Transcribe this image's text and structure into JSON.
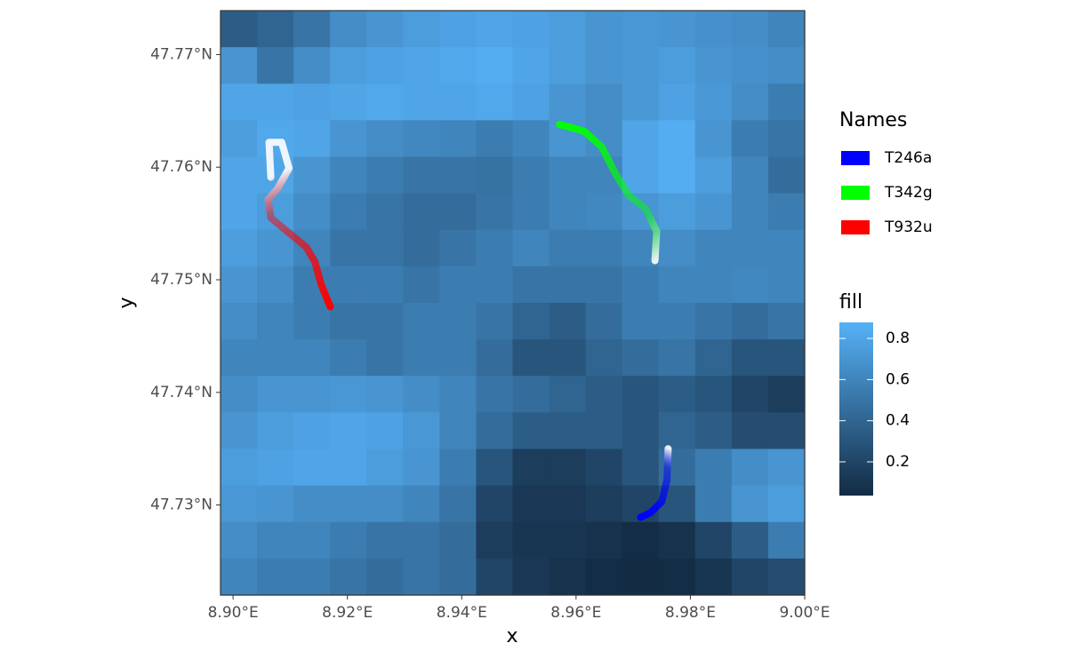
{
  "chart_data": {
    "type": "heatmap",
    "xlabel": "x",
    "ylabel": "y",
    "xlim": [
      8.8978,
      9.0
    ],
    "ylim": [
      47.722,
      47.7739
    ],
    "xticks": [
      {
        "value": 8.9,
        "label": "8.90°E"
      },
      {
        "value": 8.92,
        "label": "8.92°E"
      },
      {
        "value": 8.94,
        "label": "8.94°E"
      },
      {
        "value": 8.96,
        "label": "8.96°E"
      },
      {
        "value": 8.98,
        "label": "8.98°E"
      },
      {
        "value": 9.0,
        "label": "9.00°E"
      }
    ],
    "yticks": [
      {
        "value": 47.73,
        "label": "47.73°N"
      },
      {
        "value": 47.74,
        "label": "47.74°N"
      },
      {
        "value": 47.75,
        "label": "47.75°N"
      },
      {
        "value": 47.76,
        "label": "47.76°N"
      },
      {
        "value": 47.77,
        "label": "47.77°N"
      }
    ],
    "z": [
      [
        0.35,
        0.4,
        0.5,
        0.65,
        0.7,
        0.75,
        0.78,
        0.8,
        0.78,
        0.75,
        0.7,
        0.72,
        0.7,
        0.68,
        0.65,
        0.6
      ],
      [
        0.7,
        0.5,
        0.65,
        0.75,
        0.78,
        0.8,
        0.82,
        0.85,
        0.8,
        0.75,
        0.7,
        0.72,
        0.75,
        0.7,
        0.68,
        0.65
      ],
      [
        0.8,
        0.8,
        0.78,
        0.8,
        0.82,
        0.8,
        0.8,
        0.82,
        0.78,
        0.7,
        0.65,
        0.72,
        0.78,
        0.72,
        0.65,
        0.55
      ],
      [
        0.75,
        0.82,
        0.8,
        0.7,
        0.65,
        0.62,
        0.6,
        0.55,
        0.6,
        0.7,
        0.65,
        0.8,
        0.85,
        0.7,
        0.55,
        0.5
      ],
      [
        0.8,
        0.8,
        0.7,
        0.6,
        0.55,
        0.5,
        0.5,
        0.48,
        0.55,
        0.6,
        0.6,
        0.8,
        0.85,
        0.75,
        0.6,
        0.45
      ],
      [
        0.8,
        0.75,
        0.65,
        0.55,
        0.5,
        0.45,
        0.45,
        0.5,
        0.55,
        0.6,
        0.62,
        0.7,
        0.75,
        0.7,
        0.6,
        0.55
      ],
      [
        0.75,
        0.7,
        0.6,
        0.5,
        0.5,
        0.45,
        0.5,
        0.55,
        0.6,
        0.55,
        0.55,
        0.6,
        0.65,
        0.6,
        0.6,
        0.6
      ],
      [
        0.7,
        0.65,
        0.55,
        0.55,
        0.55,
        0.5,
        0.55,
        0.55,
        0.5,
        0.5,
        0.5,
        0.55,
        0.6,
        0.6,
        0.62,
        0.6
      ],
      [
        0.65,
        0.6,
        0.55,
        0.5,
        0.5,
        0.55,
        0.55,
        0.5,
        0.4,
        0.35,
        0.45,
        0.55,
        0.55,
        0.5,
        0.45,
        0.5
      ],
      [
        0.6,
        0.6,
        0.6,
        0.55,
        0.5,
        0.55,
        0.55,
        0.45,
        0.3,
        0.3,
        0.4,
        0.45,
        0.5,
        0.4,
        0.3,
        0.3
      ],
      [
        0.65,
        0.7,
        0.7,
        0.72,
        0.7,
        0.65,
        0.6,
        0.5,
        0.45,
        0.4,
        0.35,
        0.3,
        0.35,
        0.3,
        0.2,
        0.15
      ],
      [
        0.7,
        0.75,
        0.78,
        0.8,
        0.78,
        0.72,
        0.6,
        0.45,
        0.35,
        0.35,
        0.35,
        0.3,
        0.4,
        0.35,
        0.25,
        0.25
      ],
      [
        0.75,
        0.78,
        0.8,
        0.8,
        0.75,
        0.7,
        0.55,
        0.3,
        0.15,
        0.15,
        0.2,
        0.3,
        0.45,
        0.55,
        0.65,
        0.7
      ],
      [
        0.72,
        0.7,
        0.65,
        0.65,
        0.65,
        0.6,
        0.5,
        0.2,
        0.12,
        0.12,
        0.15,
        0.2,
        0.3,
        0.55,
        0.7,
        0.75
      ],
      [
        0.65,
        0.6,
        0.6,
        0.55,
        0.5,
        0.5,
        0.45,
        0.15,
        0.1,
        0.1,
        0.08,
        0.05,
        0.08,
        0.2,
        0.35,
        0.55
      ],
      [
        0.6,
        0.55,
        0.55,
        0.5,
        0.45,
        0.5,
        0.45,
        0.2,
        0.12,
        0.08,
        0.05,
        0.04,
        0.05,
        0.1,
        0.2,
        0.25
      ]
    ],
    "colorscale": {
      "title": "fill",
      "low": "#132b43",
      "high": "#56b1f7",
      "limits": [
        0.036,
        0.878
      ],
      "ticks": [
        0.2,
        0.4,
        0.6,
        0.8
      ]
    },
    "legend_title": "Names",
    "series": [
      {
        "name": "T246a",
        "color": "#0000ff",
        "x": [
          8.9761,
          8.9759,
          8.975,
          8.973,
          8.9713
        ],
        "y": [
          47.735,
          47.7322,
          47.7303,
          47.7293,
          47.7289
        ]
      },
      {
        "name": "T342g",
        "color": "#00ff00",
        "x": [
          8.9738,
          8.9741,
          8.9722,
          8.9692,
          8.9668,
          8.9645,
          8.9614,
          8.9571
        ],
        "y": [
          47.7517,
          47.7543,
          47.7563,
          47.7575,
          47.7595,
          47.7618,
          47.7632,
          47.7638
        ]
      },
      {
        "name": "T932u",
        "color": "#ff0000",
        "x": [
          8.9066,
          8.9063,
          8.9085,
          8.9098,
          8.9078,
          8.9061,
          8.9066,
          8.9097,
          8.9128,
          8.9143,
          8.9154,
          8.917
        ],
        "y": [
          47.7591,
          47.7622,
          47.7622,
          47.7599,
          47.7581,
          47.7571,
          47.7555,
          47.7542,
          47.7529,
          47.7516,
          47.7496,
          47.7476
        ]
      }
    ]
  }
}
